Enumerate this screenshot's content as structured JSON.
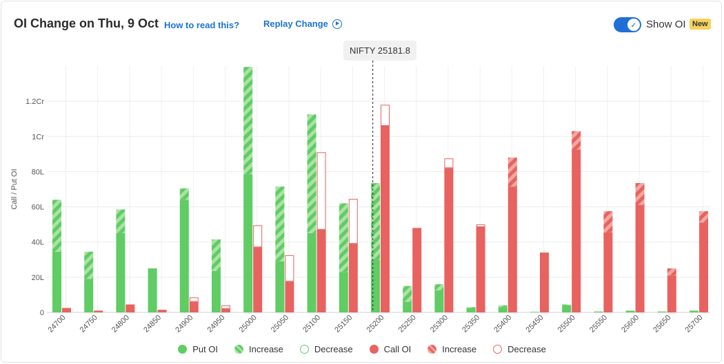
{
  "header": {
    "title": "OI Change on Thu, 9 Oct",
    "how_to_read": "How to read this?",
    "replay": "Replay Change",
    "show_oi": "Show OI",
    "new_badge": "New",
    "toggle_check": "✓"
  },
  "spot_label": "NIFTY 25181.8",
  "colors": {
    "put": "#5fcc64",
    "put_light": "#a9e3a5",
    "call": "#e8625f",
    "call_light": "#f3a7a2",
    "accent": "#1a73d6"
  },
  "legend": [
    {
      "label": "Put OI",
      "style": "put-solid"
    },
    {
      "label": "Increase",
      "style": "put-increase"
    },
    {
      "label": "Decrease",
      "style": "put-decrease"
    },
    {
      "label": "Call OI",
      "style": "call-solid"
    },
    {
      "label": "Increase",
      "style": "call-increase"
    },
    {
      "label": "Decrease",
      "style": "call-decrease"
    }
  ],
  "chart_data": {
    "type": "bar",
    "ylabel": "Call / Put OI",
    "ylim": [
      0,
      140
    ],
    "yticks": [
      {
        "value": 0,
        "label": "0"
      },
      {
        "value": 20,
        "label": "20L"
      },
      {
        "value": 40,
        "label": "40L"
      },
      {
        "value": 60,
        "label": "60L"
      },
      {
        "value": 80,
        "label": "80L"
      },
      {
        "value": 100,
        "label": "1Cr"
      },
      {
        "value": 120,
        "label": "1.2Cr"
      }
    ],
    "spot": 25181.8,
    "categories": [
      "24700",
      "24750",
      "24800",
      "24850",
      "24900",
      "24950",
      "25000",
      "25050",
      "25100",
      "25150",
      "25200",
      "25250",
      "25300",
      "25350",
      "25400",
      "25450",
      "25500",
      "25550",
      "25600",
      "25650",
      "25700"
    ],
    "put_oi": [
      34.5,
      19,
      45,
      25,
      64,
      23.5,
      78.5,
      29,
      45,
      23,
      30,
      6,
      12.5,
      2.5,
      3,
      0.3,
      4,
      0.5,
      1,
      0.5,
      1
    ],
    "put_change": [
      29.5,
      15.5,
      13.5,
      0,
      6.5,
      18,
      61,
      42.5,
      67.5,
      39,
      43.5,
      9,
      3.5,
      0.5,
      1,
      0,
      0.5,
      0,
      0,
      0,
      0
    ],
    "call_oi": [
      2.5,
      1,
      4.5,
      1.5,
      6,
      2,
      37,
      17.5,
      47,
      39,
      106,
      47.5,
      82,
      48.5,
      71.5,
      34,
      92.5,
      45.5,
      61,
      21,
      51
    ],
    "call_change": [
      0,
      0,
      0,
      0,
      2.5,
      2,
      12.5,
      15,
      44,
      25.5,
      12,
      0.5,
      5.5,
      1.5,
      16.5,
      0,
      10.5,
      12,
      12.5,
      4,
      6.5
    ],
    "call_change_type": [
      "decrease",
      "decrease",
      "decrease",
      "decrease",
      "decrease",
      "decrease",
      "decrease",
      "decrease",
      "decrease",
      "decrease",
      "decrease",
      "decrease",
      "decrease",
      "decrease",
      "increase",
      "decrease",
      "increase",
      "increase",
      "increase",
      "increase",
      "increase"
    ]
  }
}
